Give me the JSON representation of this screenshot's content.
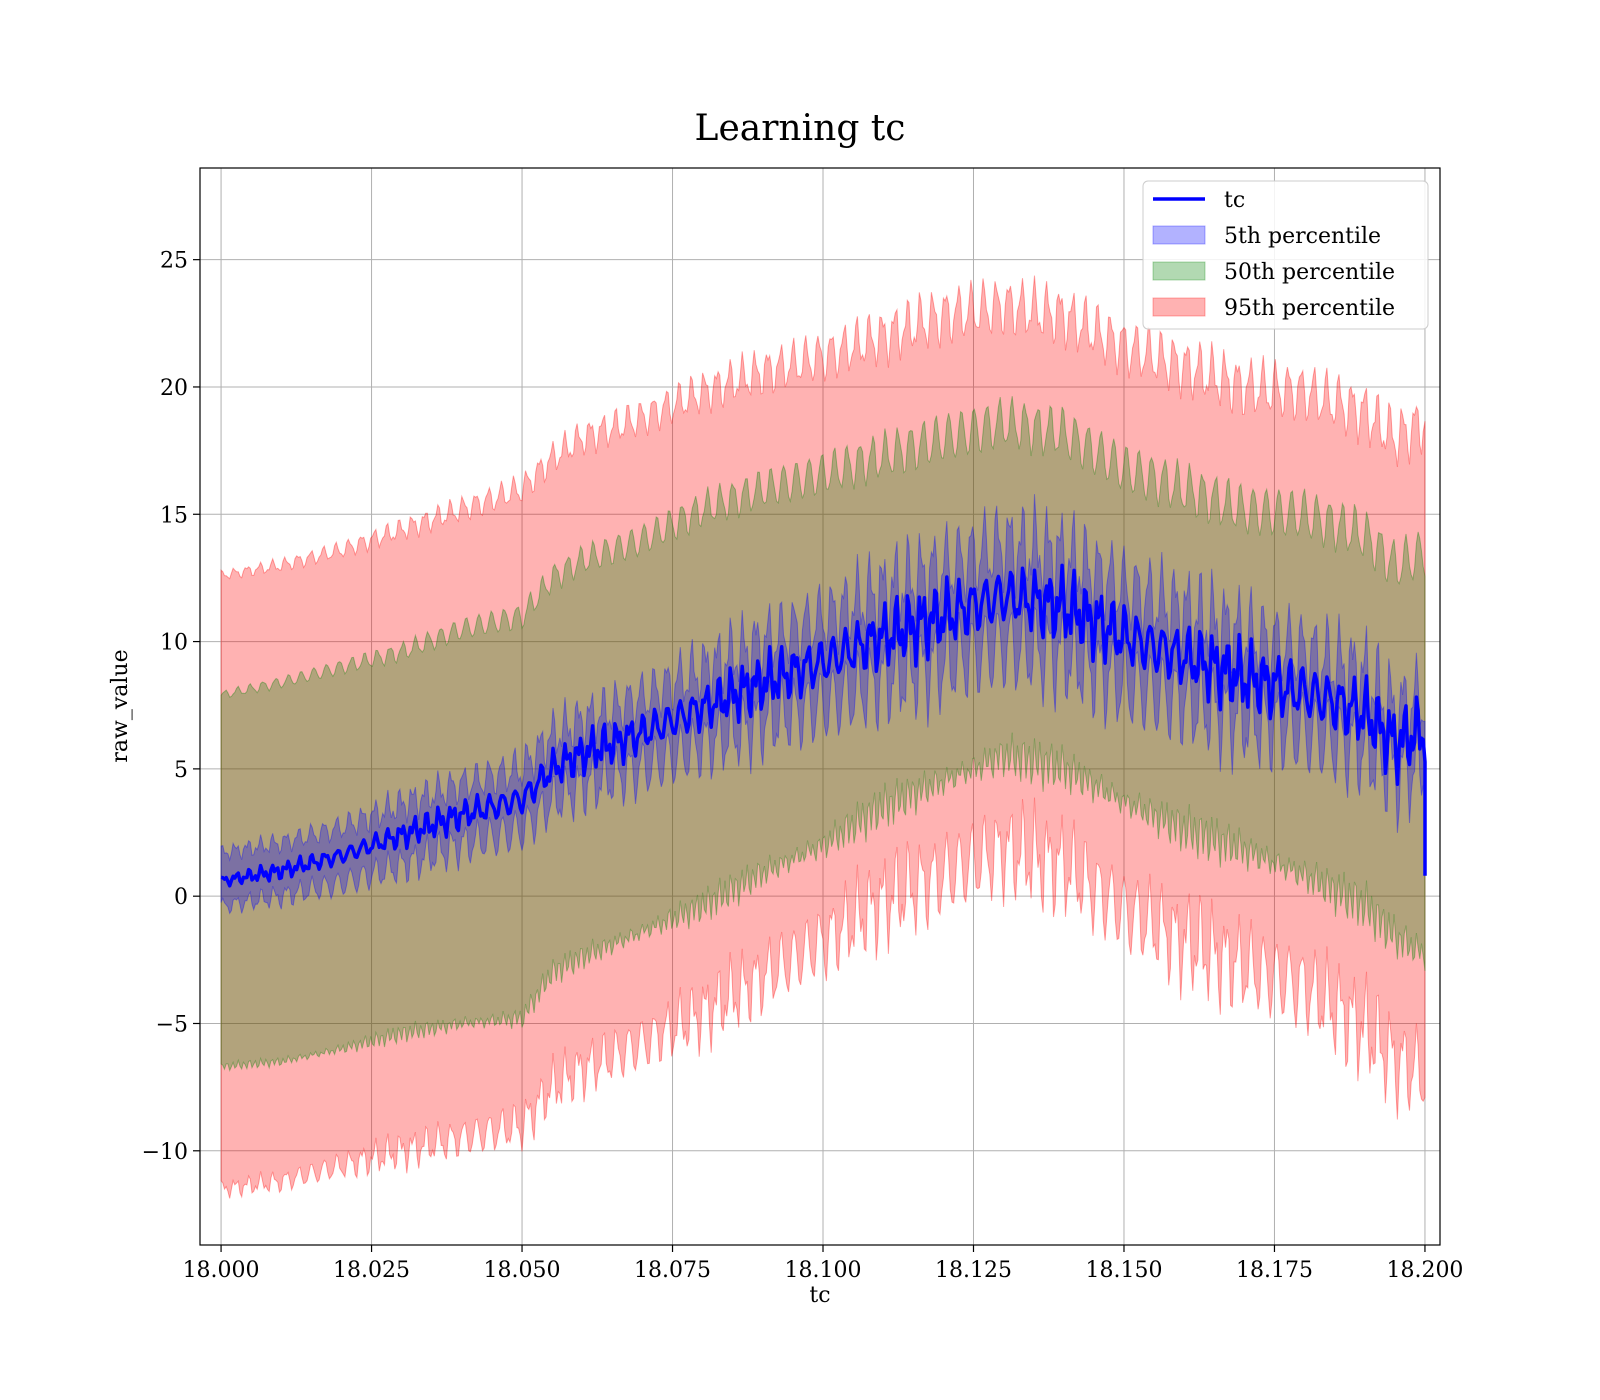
{
  "chart_data": {
    "type": "line",
    "title": "Learning tc",
    "xlabel": "tc",
    "ylabel": "raw_value",
    "xlim": [
      17.9965,
      18.2025
    ],
    "ylim": [
      -13.7,
      28.6
    ],
    "xticks": [
      18.0,
      18.025,
      18.05,
      18.075,
      18.1,
      18.125,
      18.15,
      18.175,
      18.2
    ],
    "xtick_labels": [
      "18.000",
      "18.025",
      "18.050",
      "18.075",
      "18.100",
      "18.125",
      "18.150",
      "18.175",
      "18.200"
    ],
    "yticks": [
      -10,
      -5,
      0,
      5,
      10,
      15,
      20,
      25
    ],
    "ytick_labels": [
      "−10",
      "−5",
      "0",
      "5",
      "10",
      "15",
      "20",
      "25"
    ],
    "grid": true,
    "legend_position": "top-right",
    "colors": {
      "tc_line": "#0000ff",
      "band_5th": "#0000ff",
      "band_50th": "#008000",
      "band_95th": "#ff0000"
    },
    "x": [
      18.0,
      18.01,
      18.02,
      18.03,
      18.04,
      18.05,
      18.055,
      18.06,
      18.07,
      18.08,
      18.09,
      18.1,
      18.11,
      18.12,
      18.13,
      18.14,
      18.15,
      18.16,
      18.17,
      18.18,
      18.19,
      18.195,
      18.2
    ],
    "series": [
      {
        "name": "tc",
        "kind": "line",
        "values": [
          0.6,
          1.0,
          1.6,
          2.4,
          3.2,
          3.8,
          5.0,
          5.6,
          6.4,
          7.4,
          8.4,
          9.2,
          10.2,
          11.0,
          11.8,
          11.4,
          10.2,
          9.4,
          8.6,
          8.0,
          7.2,
          6.0,
          6.5
        ]
      },
      {
        "name": "5th percentile",
        "kind": "band",
        "lower": [
          -0.4,
          0.0,
          0.5,
          1.2,
          2.0,
          2.6,
          3.7,
          4.3,
          5.0,
          5.9,
          6.8,
          7.5,
          8.4,
          9.1,
          9.8,
          9.4,
          8.3,
          7.6,
          6.9,
          6.4,
          5.7,
          4.7,
          5.2
        ],
        "upper": [
          1.7,
          2.1,
          2.7,
          3.6,
          4.4,
          5.0,
          6.3,
          6.9,
          7.8,
          8.9,
          10.0,
          10.9,
          12.0,
          12.9,
          13.8,
          13.4,
          12.1,
          11.2,
          10.3,
          9.6,
          8.7,
          7.3,
          7.8
        ]
      },
      {
        "name": "50th percentile",
        "kind": "band",
        "lower": [
          -6.7,
          -6.5,
          -6.0,
          -5.4,
          -5.0,
          -4.8,
          -3.0,
          -2.4,
          -1.4,
          -0.4,
          0.9,
          2.0,
          3.5,
          4.5,
          5.5,
          5.0,
          3.7,
          2.6,
          1.8,
          0.8,
          -0.4,
          -1.6,
          -2.3
        ],
        "upper": [
          7.9,
          8.4,
          9.0,
          9.6,
          10.5,
          11.0,
          12.5,
          13.2,
          14.0,
          15.2,
          16.0,
          16.6,
          17.3,
          18.0,
          18.6,
          18.2,
          16.8,
          16.0,
          15.2,
          15.0,
          14.2,
          13.0,
          13.5
        ]
      },
      {
        "name": "95th percentile",
        "kind": "band",
        "lower": [
          -11.5,
          -11.2,
          -10.6,
          -10.0,
          -9.5,
          -9.0,
          -7.5,
          -6.8,
          -5.8,
          -4.6,
          -3.2,
          -1.8,
          -0.2,
          0.8,
          1.8,
          1.2,
          -0.6,
          -1.8,
          -2.8,
          -3.6,
          -5.2,
          -6.5,
          -7.0
        ],
        "upper": [
          12.6,
          13.0,
          13.6,
          14.4,
          15.2,
          16.0,
          17.2,
          18.0,
          18.8,
          19.8,
          20.6,
          21.2,
          22.0,
          22.8,
          23.2,
          22.8,
          21.6,
          20.8,
          20.0,
          19.8,
          19.0,
          18.0,
          18.6
        ]
      }
    ]
  }
}
